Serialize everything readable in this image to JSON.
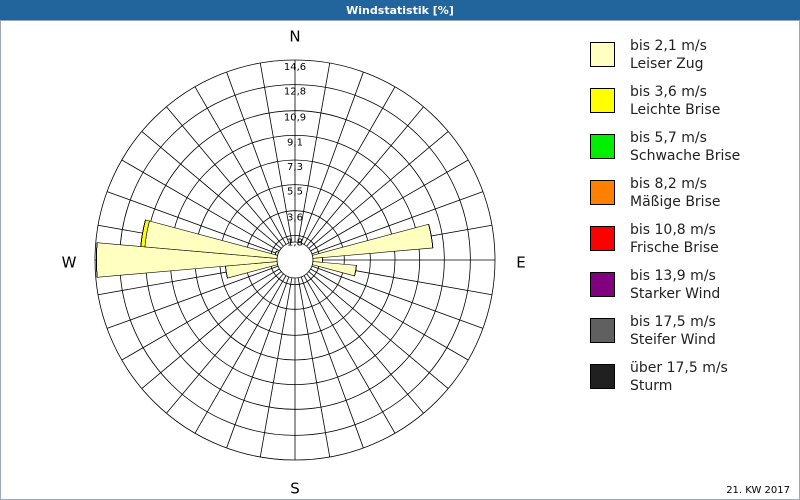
{
  "chart_data": {
    "type": "windrose",
    "title": "Windstatistik [%]",
    "footer": "21. KW 2017",
    "categories": [
      "N",
      null,
      null,
      null,
      null,
      null,
      null,
      null,
      null,
      "E",
      null,
      null,
      null,
      null,
      null,
      null,
      null,
      null,
      "S",
      null,
      null,
      null,
      null,
      null,
      null,
      null,
      null,
      "W",
      null,
      null,
      null,
      null,
      null,
      null,
      null,
      null
    ],
    "ylim": [
      0,
      14.6
    ],
    "yticks": [
      {
        "value": 1.8,
        "label": "1,8"
      },
      {
        "value": 3.6,
        "label": "3,6"
      },
      {
        "value": 5.5,
        "label": "5,5"
      },
      {
        "value": 7.3,
        "label": "7,3"
      },
      {
        "value": 9.1,
        "label": "9,1"
      },
      {
        "value": 10.9,
        "label": "10,9"
      },
      {
        "value": 12.8,
        "label": "12,8"
      },
      {
        "value": 14.6,
        "label": "14,6"
      }
    ],
    "series": [
      {
        "name": "bis 2,1 m/s",
        "description": "Leiser Zug",
        "color": "#ffffc0",
        "values": [
          0.4,
          0,
          0,
          0,
          0,
          0,
          0,
          1.2,
          10.1,
          2.0,
          4.5,
          0.8,
          0,
          0,
          0,
          0,
          0,
          0,
          0.3,
          0,
          0,
          0,
          0,
          0,
          0,
          1.0,
          5.1,
          14.5,
          11.0,
          1.5,
          0,
          0,
          0,
          0,
          0,
          0
        ]
      },
      {
        "name": "bis 3,6 m/s",
        "description": "Leichte Brise",
        "color": "#ffff00",
        "values": [
          0,
          0,
          0,
          0,
          0,
          0,
          0,
          0,
          0,
          0,
          0,
          0,
          0,
          0,
          0,
          0,
          0,
          0,
          0,
          0,
          0,
          0,
          0,
          0,
          0,
          0,
          0,
          0,
          0.3,
          0,
          0,
          0,
          0,
          0,
          0,
          0
        ]
      },
      {
        "name": "bis 5,7 m/s",
        "description": "Schwache Brise",
        "color": "#00ee00",
        "values": [
          0,
          0,
          0,
          0,
          0,
          0,
          0,
          0,
          0,
          0,
          0,
          0,
          0,
          0,
          0,
          0,
          0,
          0,
          0,
          0,
          0,
          0,
          0,
          0,
          0,
          0,
          0,
          0,
          0,
          0,
          0,
          0,
          0,
          0,
          0,
          0
        ]
      },
      {
        "name": "bis 8,2 m/s",
        "description": "Mäßige Brise",
        "color": "#ff8000",
        "values": [
          0,
          0,
          0,
          0,
          0,
          0,
          0,
          0,
          0,
          0,
          0,
          0,
          0,
          0,
          0,
          0,
          0,
          0,
          0,
          0,
          0,
          0,
          0,
          0,
          0,
          0,
          0,
          0,
          0,
          0,
          0,
          0,
          0,
          0,
          0,
          0
        ]
      },
      {
        "name": "bis 10,8 m/s",
        "description": "Frische Brise",
        "color": "#ff0000",
        "values": [
          0,
          0,
          0,
          0,
          0,
          0,
          0,
          0,
          0,
          0,
          0,
          0,
          0,
          0,
          0,
          0,
          0,
          0,
          0,
          0,
          0,
          0,
          0,
          0,
          0,
          0,
          0,
          0,
          0,
          0,
          0,
          0,
          0,
          0,
          0,
          0
        ]
      },
      {
        "name": "bis 13,9 m/s",
        "description": "Starker Wind",
        "color": "#800080",
        "values": [
          0,
          0,
          0,
          0,
          0,
          0,
          0,
          0,
          0,
          0,
          0,
          0,
          0,
          0,
          0,
          0,
          0,
          0,
          0,
          0,
          0,
          0,
          0,
          0,
          0,
          0,
          0,
          0,
          0,
          0,
          0,
          0,
          0,
          0,
          0,
          0
        ]
      },
      {
        "name": "bis 17,5 m/s",
        "description": "Steifer Wind",
        "color": "#606060",
        "values": [
          0,
          0,
          0,
          0,
          0,
          0,
          0,
          0,
          0,
          0,
          0,
          0,
          0,
          0,
          0,
          0,
          0,
          0,
          0,
          0,
          0,
          0,
          0,
          0,
          0,
          0,
          0,
          0,
          0,
          0,
          0,
          0,
          0,
          0,
          0,
          0
        ]
      },
      {
        "name": "über 17,5 m/s",
        "description": "Sturm",
        "color": "#202020",
        "values": [
          0,
          0,
          0,
          0,
          0,
          0,
          0,
          0,
          0,
          0,
          0,
          0,
          0,
          0,
          0,
          0,
          0,
          0,
          0,
          0,
          0,
          0,
          0,
          0,
          0,
          0,
          0,
          0,
          0,
          0,
          0,
          0,
          0,
          0,
          0,
          0
        ]
      }
    ]
  }
}
